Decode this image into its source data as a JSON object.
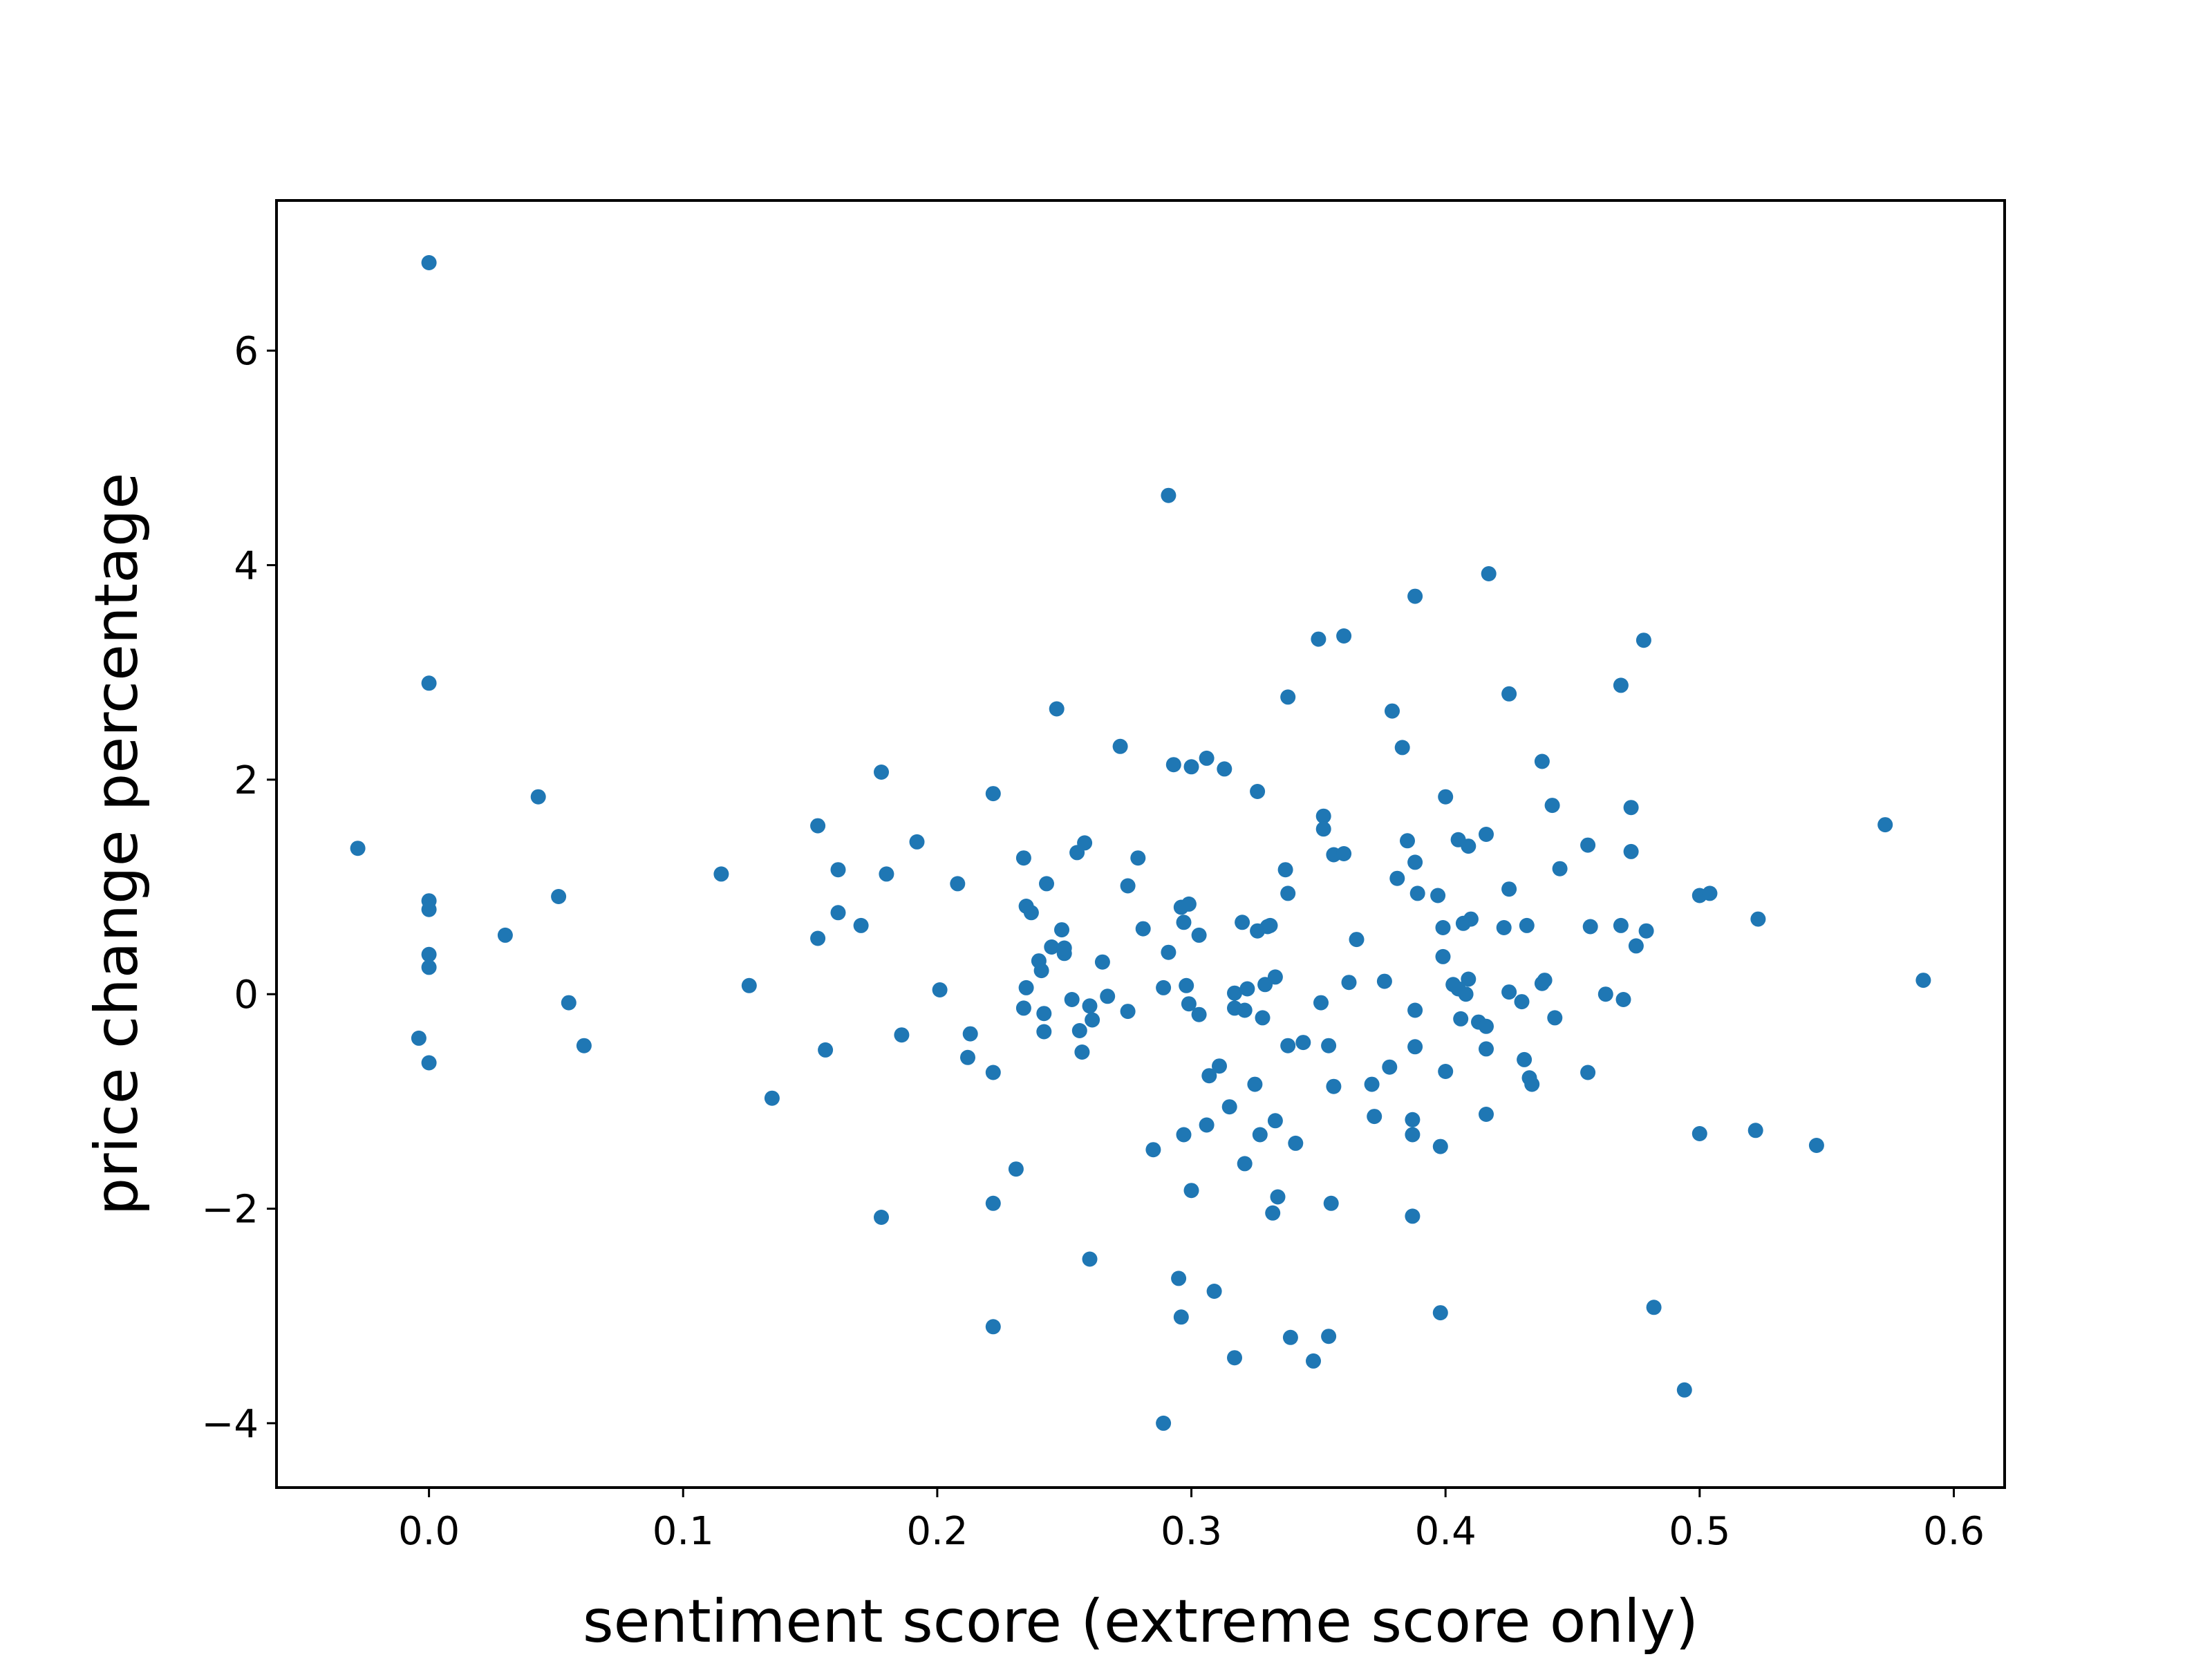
{
  "chart_data": {
    "type": "scatter",
    "title": "",
    "xlabel": "sentiment score (extreme score only)",
    "ylabel": "price change percentage",
    "xlim": [
      -0.06,
      0.62
    ],
    "ylim": [
      -4.6,
      7.4
    ],
    "xticks": [
      0.0,
      0.1,
      0.2,
      0.3,
      0.4,
      0.5,
      0.6
    ],
    "xtick_labels": [
      "0.0",
      "0.1",
      "0.2",
      "0.3",
      "0.4",
      "0.5",
      "0.6"
    ],
    "yticks": [
      -4,
      -2,
      0,
      2,
      4,
      6
    ],
    "ytick_labels": [
      "−4",
      "−2",
      "0",
      "2",
      "4",
      "6"
    ],
    "grid": false,
    "marker_color": "#1f77b4",
    "points": [
      [
        -0.028,
        1.36
      ],
      [
        -0.004,
        -0.41
      ],
      [
        0.0,
        6.82
      ],
      [
        0.0,
        2.9
      ],
      [
        0.0,
        0.87
      ],
      [
        0.0,
        0.79
      ],
      [
        0.0,
        0.37
      ],
      [
        0.0,
        0.25
      ],
      [
        0.0,
        -0.64
      ],
      [
        0.03,
        0.55
      ],
      [
        0.043,
        1.84
      ],
      [
        0.051,
        0.91
      ],
      [
        0.055,
        -0.08
      ],
      [
        0.061,
        -0.48
      ],
      [
        0.115,
        1.12
      ],
      [
        0.126,
        0.08
      ],
      [
        0.135,
        -0.97
      ],
      [
        0.153,
        1.57
      ],
      [
        0.153,
        0.52
      ],
      [
        0.156,
        -0.52
      ],
      [
        0.161,
        1.16
      ],
      [
        0.161,
        0.76
      ],
      [
        0.17,
        0.64
      ],
      [
        0.178,
        2.07
      ],
      [
        0.178,
        -2.08
      ],
      [
        0.18,
        1.12
      ],
      [
        0.186,
        -0.38
      ],
      [
        0.192,
        1.42
      ],
      [
        0.201,
        0.04
      ],
      [
        0.208,
        1.03
      ],
      [
        0.212,
        -0.59
      ],
      [
        0.213,
        -0.37
      ],
      [
        0.222,
        1.87
      ],
      [
        0.222,
        -0.73
      ],
      [
        0.222,
        -1.95
      ],
      [
        0.222,
        -3.1
      ],
      [
        0.231,
        -1.63
      ],
      [
        0.234,
        1.27
      ],
      [
        0.234,
        -0.13
      ],
      [
        0.235,
        0.82
      ],
      [
        0.235,
        0.06
      ],
      [
        0.237,
        0.76
      ],
      [
        0.24,
        0.31
      ],
      [
        0.241,
        0.22
      ],
      [
        0.242,
        -0.35
      ],
      [
        0.242,
        -0.18
      ],
      [
        0.243,
        1.03
      ],
      [
        0.245,
        0.44
      ],
      [
        0.247,
        2.66
      ],
      [
        0.249,
        0.6
      ],
      [
        0.25,
        0.38
      ],
      [
        0.25,
        0.43
      ],
      [
        0.253,
        -0.05
      ],
      [
        0.255,
        1.32
      ],
      [
        0.256,
        -0.34
      ],
      [
        0.257,
        -0.54
      ],
      [
        0.258,
        1.41
      ],
      [
        0.26,
        -0.11
      ],
      [
        0.26,
        -2.47
      ],
      [
        0.261,
        -0.24
      ],
      [
        0.265,
        0.3
      ],
      [
        0.267,
        -0.02
      ],
      [
        0.272,
        2.31
      ],
      [
        0.275,
        1.01
      ],
      [
        0.275,
        -0.16
      ],
      [
        0.279,
        1.27
      ],
      [
        0.281,
        0.61
      ],
      [
        0.285,
        -1.45
      ],
      [
        0.289,
        0.06
      ],
      [
        0.289,
        -4.0
      ],
      [
        0.291,
        4.65
      ],
      [
        0.291,
        0.39
      ],
      [
        0.293,
        2.14
      ],
      [
        0.295,
        -2.65
      ],
      [
        0.296,
        -3.01
      ],
      [
        0.296,
        0.81
      ],
      [
        0.297,
        0.67
      ],
      [
        0.297,
        -1.31
      ],
      [
        0.298,
        0.08
      ],
      [
        0.299,
        0.84
      ],
      [
        0.299,
        -0.09
      ],
      [
        0.3,
        2.12
      ],
      [
        0.3,
        -1.83
      ],
      [
        0.303,
        0.55
      ],
      [
        0.303,
        -0.19
      ],
      [
        0.306,
        2.2
      ],
      [
        0.306,
        -1.22
      ],
      [
        0.307,
        -0.76
      ],
      [
        0.309,
        -2.77
      ],
      [
        0.311,
        -0.67
      ],
      [
        0.313,
        2.1
      ],
      [
        0.315,
        -1.05
      ],
      [
        0.317,
        0.01
      ],
      [
        0.317,
        -0.13
      ],
      [
        0.317,
        -3.39
      ],
      [
        0.32,
        0.67
      ],
      [
        0.321,
        -0.15
      ],
      [
        0.321,
        -1.58
      ],
      [
        0.322,
        0.05
      ],
      [
        0.325,
        -0.84
      ],
      [
        0.326,
        1.89
      ],
      [
        0.326,
        0.59
      ],
      [
        0.327,
        -1.31
      ],
      [
        0.328,
        -0.22
      ],
      [
        0.329,
        0.09
      ],
      [
        0.33,
        0.63
      ],
      [
        0.331,
        0.64
      ],
      [
        0.332,
        -2.04
      ],
      [
        0.333,
        0.16
      ],
      [
        0.333,
        -1.18
      ],
      [
        0.334,
        -1.89
      ],
      [
        0.337,
        1.16
      ],
      [
        0.338,
        2.77
      ],
      [
        0.338,
        0.94
      ],
      [
        0.338,
        -0.48
      ],
      [
        0.339,
        -3.2
      ],
      [
        0.341,
        -1.39
      ],
      [
        0.344,
        -0.45
      ],
      [
        0.348,
        -3.42
      ],
      [
        0.35,
        3.31
      ],
      [
        0.351,
        -0.08
      ],
      [
        0.352,
        1.66
      ],
      [
        0.352,
        1.54
      ],
      [
        0.354,
        -0.48
      ],
      [
        0.354,
        -3.19
      ],
      [
        0.355,
        -1.95
      ],
      [
        0.356,
        1.3
      ],
      [
        0.356,
        -0.86
      ],
      [
        0.36,
        3.34
      ],
      [
        0.36,
        1.31
      ],
      [
        0.362,
        0.11
      ],
      [
        0.365,
        0.51
      ],
      [
        0.371,
        -0.84
      ],
      [
        0.372,
        -1.14
      ],
      [
        0.376,
        0.12
      ],
      [
        0.378,
        -0.68
      ],
      [
        0.379,
        2.64
      ],
      [
        0.381,
        1.08
      ],
      [
        0.383,
        2.3
      ],
      [
        0.385,
        1.43
      ],
      [
        0.387,
        -1.31
      ],
      [
        0.387,
        -2.07
      ],
      [
        0.387,
        -1.17
      ],
      [
        0.388,
        3.71
      ],
      [
        0.388,
        1.23
      ],
      [
        0.388,
        -0.49
      ],
      [
        0.388,
        -0.15
      ],
      [
        0.389,
        0.94
      ],
      [
        0.397,
        0.92
      ],
      [
        0.398,
        -1.42
      ],
      [
        0.398,
        -2.97
      ],
      [
        0.399,
        0.62
      ],
      [
        0.399,
        0.35
      ],
      [
        0.4,
        1.84
      ],
      [
        0.4,
        -0.72
      ],
      [
        0.403,
        0.09
      ],
      [
        0.405,
        1.44
      ],
      [
        0.405,
        0.05
      ],
      [
        0.406,
        -0.23
      ],
      [
        0.407,
        0.66
      ],
      [
        0.408,
        0.0
      ],
      [
        0.409,
        1.38
      ],
      [
        0.409,
        0.14
      ],
      [
        0.41,
        0.7
      ],
      [
        0.413,
        -0.26
      ],
      [
        0.416,
        1.49
      ],
      [
        0.416,
        -0.51
      ],
      [
        0.416,
        -0.3
      ],
      [
        0.416,
        -1.12
      ],
      [
        0.417,
        3.92
      ],
      [
        0.423,
        0.62
      ],
      [
        0.425,
        2.8
      ],
      [
        0.425,
        0.98
      ],
      [
        0.425,
        0.02
      ],
      [
        0.43,
        -0.07
      ],
      [
        0.431,
        -0.61
      ],
      [
        0.432,
        0.64
      ],
      [
        0.433,
        -0.78
      ],
      [
        0.434,
        -0.84
      ],
      [
        0.438,
        2.17
      ],
      [
        0.438,
        0.1
      ],
      [
        0.439,
        0.13
      ],
      [
        0.442,
        1.76
      ],
      [
        0.443,
        -0.22
      ],
      [
        0.445,
        1.17
      ],
      [
        0.456,
        1.39
      ],
      [
        0.456,
        -0.73
      ],
      [
        0.457,
        0.63
      ],
      [
        0.463,
        0.0
      ],
      [
        0.469,
        2.88
      ],
      [
        0.469,
        0.64
      ],
      [
        0.47,
        -0.05
      ],
      [
        0.473,
        1.74
      ],
      [
        0.473,
        1.33
      ],
      [
        0.475,
        0.45
      ],
      [
        0.478,
        3.3
      ],
      [
        0.479,
        0.59
      ],
      [
        0.482,
        -2.92
      ],
      [
        0.494,
        -3.69
      ],
      [
        0.5,
        0.92
      ],
      [
        0.5,
        -1.3
      ],
      [
        0.504,
        0.94
      ],
      [
        0.522,
        -1.27
      ],
      [
        0.523,
        0.7
      ],
      [
        0.546,
        -1.41
      ],
      [
        0.573,
        1.58
      ],
      [
        0.588,
        0.13
      ]
    ]
  }
}
